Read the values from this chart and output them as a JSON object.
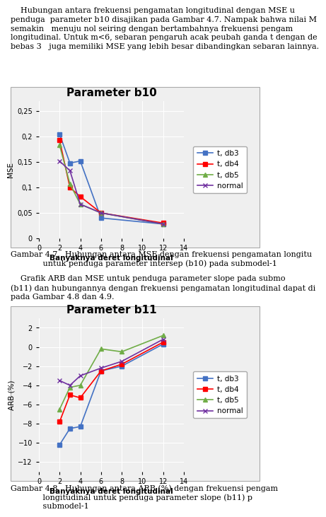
{
  "chart1": {
    "title": "Parameter b10",
    "xlabel": "Banyaknya deret longitudinal",
    "ylabel": "MSE",
    "x": [
      2,
      3,
      4,
      6,
      12
    ],
    "series": {
      "t, db3": {
        "values": [
          0.205,
          0.148,
          0.152,
          0.04,
          0.028
        ],
        "color": "#4472C4",
        "marker": "s"
      },
      "t, db4": {
        "values": [
          0.193,
          0.1,
          0.082,
          0.05,
          0.03
        ],
        "color": "#FF0000",
        "marker": "s"
      },
      "t, db5": {
        "values": [
          0.183,
          0.107,
          0.067,
          0.05,
          0.028
        ],
        "color": "#70AD47",
        "marker": "^"
      },
      "normal": {
        "values": [
          0.152,
          0.133,
          0.067,
          0.05,
          0.028
        ],
        "color": "#7030A0",
        "marker": "x"
      }
    },
    "ylim": [
      0,
      0.27
    ],
    "yticks": [
      0,
      0.05,
      0.1,
      0.15,
      0.2,
      0.25
    ],
    "xlim": [
      0,
      14
    ],
    "xticks": [
      0,
      2,
      4,
      6,
      8,
      10,
      12,
      14
    ]
  },
  "chart2": {
    "title": "Parameter b11",
    "xlabel": "Banyaknya deret longitudinal",
    "ylabel": "ARB (%)",
    "x": [
      2,
      3,
      4,
      6,
      8,
      12
    ],
    "series": {
      "t, db3": {
        "values": [
          -10.2,
          -8.5,
          -8.3,
          -2.5,
          -2.0,
          0.3
        ],
        "color": "#4472C4",
        "marker": "s"
      },
      "t, db4": {
        "values": [
          -7.8,
          -5.0,
          -5.3,
          -2.5,
          -1.8,
          0.5
        ],
        "color": "#FF0000",
        "marker": "s"
      },
      "t, db5": {
        "values": [
          -6.5,
          -4.2,
          -4.0,
          -0.2,
          -0.5,
          1.2
        ],
        "color": "#70AD47",
        "marker": "^"
      },
      "normal": {
        "values": [
          -3.5,
          -4.0,
          -3.0,
          -2.2,
          -1.5,
          0.8
        ],
        "color": "#7030A0",
        "marker": "x"
      }
    },
    "ylim": [
      -13,
      3
    ],
    "yticks": [
      -12,
      -10,
      -8,
      -6,
      -4,
      -2,
      0,
      2
    ],
    "xlim": [
      0,
      14
    ],
    "xticks": [
      0,
      2,
      4,
      6,
      8,
      10,
      12,
      14
    ]
  },
  "text1": "    Hubungan antara frekuensi pengamatan longitudinal dengan MSE u\npenduga  parameter b10 disajikan pada Gambar 4.7. Nampak bahwa nilai M\nsemakin   menuju nol seiring dengan bertambahnya frekuensi pengam\nlongitudinal. Untuk m<6, sebaran pengaruh acak peubah ganda t dengan de\nbebas 3   juga memiliki MSE yang lebih besar dibandingkan sebaran lainnya.",
  "caption1_a": "Gambar 4.7.  Hubungan antara MSE dengan frekuensi pengamatan longitu",
  "caption1_b": "             untuk penduga parameter intersep (b10) pada submodel-1",
  "text2_a": "    Grafik ARB dan MSE untuk penduga parameter slope pada submo",
  "text2_b": "(b11) dan hubungannya dengan frekuensi pengamatan longitudinal dapat di",
  "text2_c": "pada Gambar 4.8 dan 4.9.",
  "caption2_a": "Gambar 4.8.  Hubungan antara ARB (%) dengan frekuensi pengam",
  "caption2_b": "             longitudinal untuk penduga parameter slope (b11) p",
  "caption2_c": "             submodel-1",
  "background_color": "#FFFFFF",
  "chart_bg": "#EFEFEF",
  "box_color": "#CCCCCC",
  "title_fontsize": 11,
  "axis_label_fontsize": 7.5,
  "legend_fontsize": 7.5,
  "tick_fontsize": 7,
  "text_fontsize": 8,
  "caption_fontsize": 8
}
